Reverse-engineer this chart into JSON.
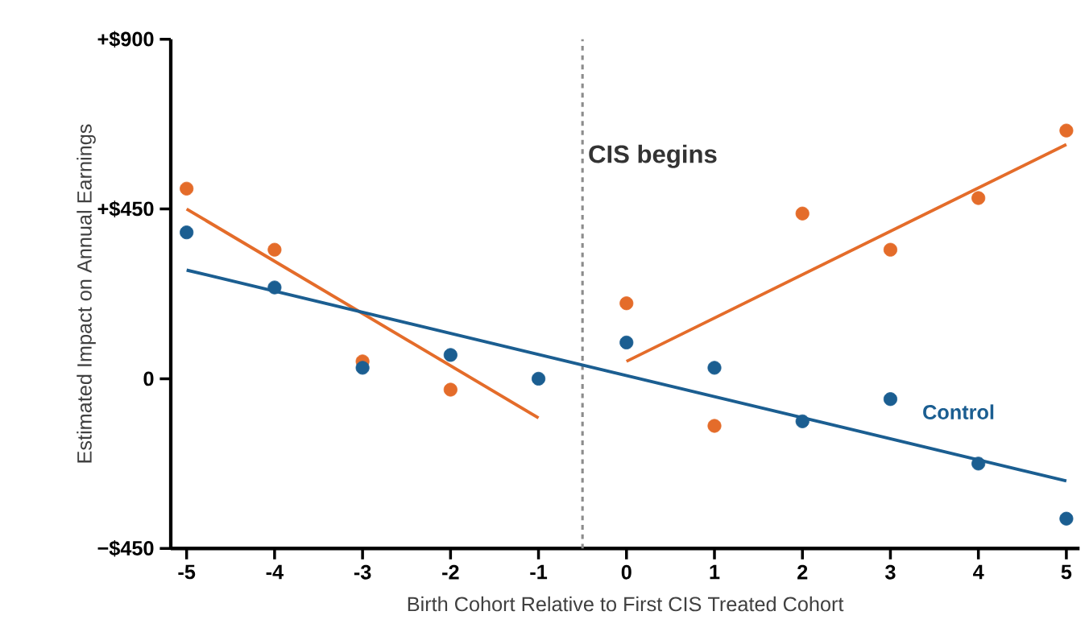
{
  "chart_data": {
    "type": "scatter",
    "xlabel": "Birth Cohort Relative to First CIS Treated Cohort",
    "ylabel": "Estimated Impact on Annual Earnings",
    "xlim": [
      -5.18,
      5.15
    ],
    "ylim": [
      -450,
      900
    ],
    "xticks": [
      -5,
      -4,
      -3,
      -2,
      -1,
      0,
      1,
      2,
      3,
      4,
      5
    ],
    "yticks": [
      {
        "value": -450,
        "label": "−$450"
      },
      {
        "value": 0,
        "label": "0"
      },
      {
        "value": 450,
        "label": "+$450"
      },
      {
        "value": 900,
        "label": "+$900"
      }
    ],
    "grid": false,
    "ref_lines": [
      {
        "axis": "x",
        "value": -0.5,
        "label": "CIS begins",
        "color": "#8c8c8c",
        "line_style": "dashed"
      }
    ],
    "series": [
      {
        "type": "line",
        "marker": "none",
        "color": "#e46c2a",
        "x": [
          -5,
          -1
        ],
        "values": [
          450,
          -104
        ]
      },
      {
        "type": "line",
        "marker": "none",
        "color": "#e46c2a",
        "x": [
          0,
          5
        ],
        "values": [
          46,
          621
        ]
      },
      {
        "type": "line",
        "marker": "none",
        "color": "#1b5e91",
        "x": [
          -5,
          5
        ],
        "values": [
          288,
          -271
        ]
      },
      {
        "marker": "circle",
        "color": "#e46c2a",
        "x": [
          -5,
          -4,
          -3,
          -2,
          -1,
          0,
          1,
          2,
          3,
          4,
          5
        ],
        "values": [
          504,
          342,
          46,
          -29,
          null,
          200,
          -125,
          438,
          342,
          479,
          658
        ]
      },
      {
        "marker": "circle",
        "name": "Control",
        "color": "#1b5e91",
        "x": [
          -5,
          -4,
          -3,
          -2,
          -1,
          0,
          1,
          2,
          3,
          4,
          5
        ],
        "values": [
          388,
          242,
          29,
          63,
          0,
          96,
          29,
          -113,
          -54,
          -225,
          -371
        ]
      }
    ]
  }
}
